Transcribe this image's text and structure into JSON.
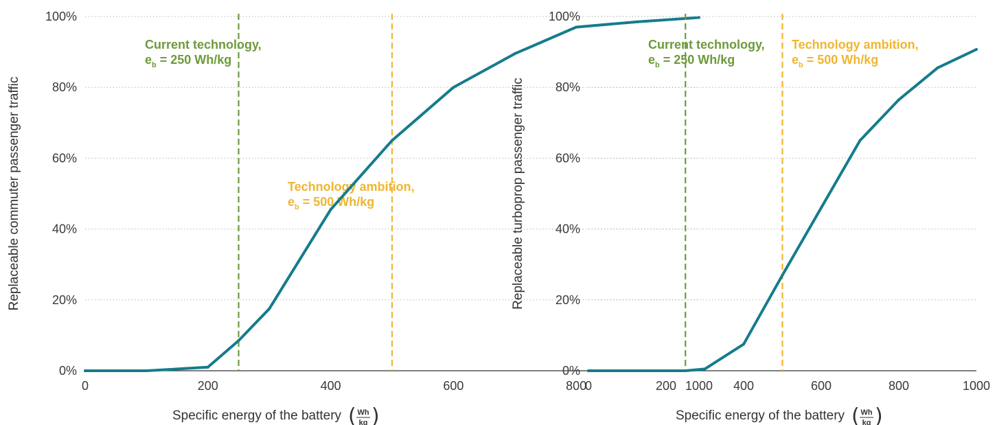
{
  "colors": {
    "line": "#157c8c",
    "current": "#6d9a3c",
    "ambition": "#f0b530",
    "grid": "#b8b8b8",
    "axis": "#333333"
  },
  "chart_data": [
    {
      "type": "line",
      "xlabel": "Specific energy of the battery",
      "xlabel_unit_num": "Wh",
      "xlabel_unit_den": "kg",
      "ylabel": "Replaceable commuter passenger traffic",
      "xlim": [
        0,
        1000
      ],
      "ylim": [
        0,
        100
      ],
      "xticks": [
        "0",
        "200",
        "400",
        "600",
        "800",
        "1000"
      ],
      "yticks": [
        "0%",
        "20%",
        "40%",
        "60%",
        "80%",
        "100%"
      ],
      "grid": "horizontal dotted",
      "x": [
        0,
        100,
        200,
        250,
        300,
        400,
        500,
        600,
        700,
        800,
        900,
        1000
      ],
      "y": [
        0,
        0,
        1,
        8.5,
        17.5,
        45.5,
        65,
        80,
        89.5,
        97,
        98.5,
        99.7
      ],
      "vlines": [
        {
          "x": 250,
          "color_key": "current",
          "label_line1": "Current technology,",
          "label_pre": "e",
          "label_sub": "b",
          "label_post": " = 250 Wh/kg"
        },
        {
          "x": 500,
          "color_key": "ambition",
          "label_line1": "Technology ambition,",
          "label_pre": "e",
          "label_sub": "b",
          "label_post": " = 500 Wh/kg"
        }
      ]
    },
    {
      "type": "line",
      "xlabel": "Specific energy of the battery",
      "xlabel_unit_num": "Wh",
      "xlabel_unit_den": "kg",
      "ylabel": "Replaceable turboprop passenger traffic",
      "xlim": [
        0,
        1000
      ],
      "ylim": [
        0,
        100
      ],
      "xticks": [
        "0",
        "200",
        "400",
        "600",
        "800",
        "1000"
      ],
      "yticks": [
        "0%",
        "20%",
        "40%",
        "60%",
        "80%",
        "100%"
      ],
      "grid": "horizontal dotted",
      "x": [
        0,
        100,
        200,
        250,
        300,
        400,
        500,
        600,
        700,
        800,
        900,
        1000
      ],
      "y": [
        0,
        0,
        0,
        0,
        0.5,
        7.5,
        27,
        46,
        65,
        76.5,
        85.5,
        90.7
      ],
      "vlines": [
        {
          "x": 250,
          "color_key": "current",
          "label_line1": "Current technology,",
          "label_pre": "e",
          "label_sub": "b",
          "label_post": " = 250 Wh/kg"
        },
        {
          "x": 500,
          "color_key": "ambition",
          "label_line1": "Technology ambition,",
          "label_pre": "e",
          "label_sub": "b",
          "label_post": " = 500 Wh/kg"
        }
      ]
    }
  ]
}
